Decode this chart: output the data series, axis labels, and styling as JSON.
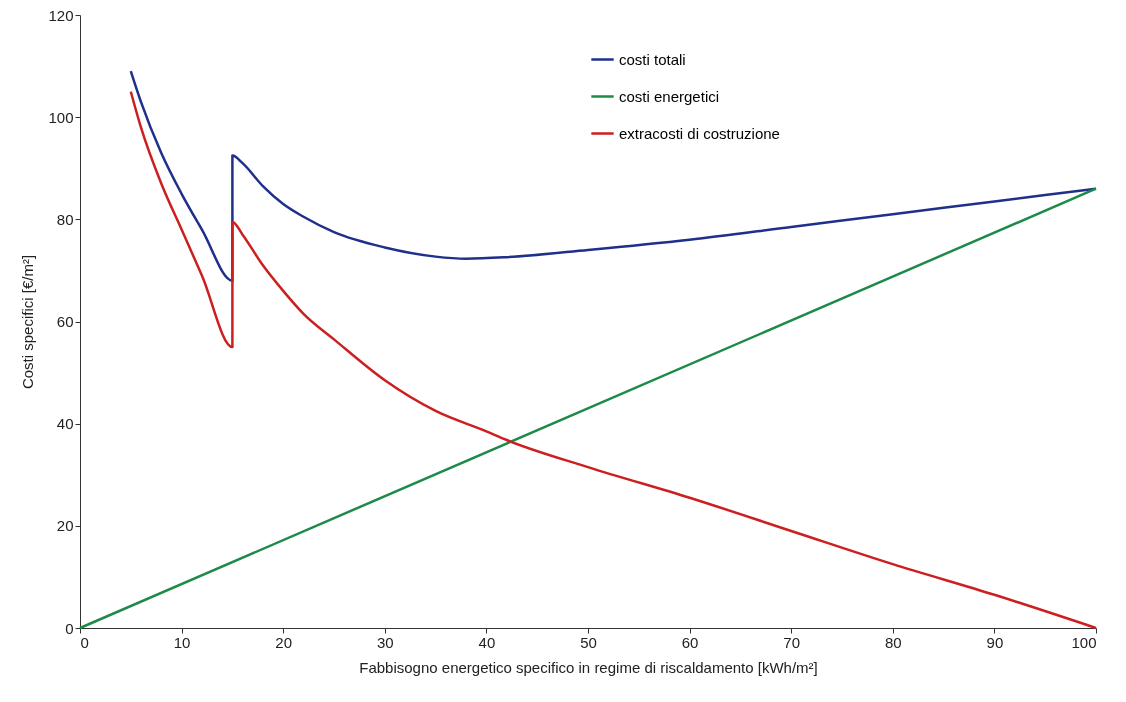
{
  "chart_data": {
    "type": "line",
    "xlabel": "Fabbisogno energetico specifico in regime di riscaldamento [kWh/m²]",
    "ylabel": "Costi specifici [€/m²]",
    "xlim": [
      0,
      100
    ],
    "ylim": [
      0,
      120
    ],
    "xticks": [
      0,
      10,
      20,
      30,
      40,
      50,
      60,
      70,
      80,
      90,
      100
    ],
    "yticks": [
      0,
      20,
      40,
      60,
      80,
      100,
      120
    ],
    "grid": false,
    "legend": "top right",
    "marker": "none",
    "line_style": "solid",
    "series": [
      {
        "name": "costi totali",
        "color": "#1f2f8a",
        "x": [
          5,
          6,
          8,
          10,
          12,
          15,
          15,
          16,
          18,
          20,
          22,
          25,
          30,
          35,
          38,
          42,
          50,
          60,
          70,
          80,
          90,
          100
        ],
        "values": [
          109,
          103,
          93,
          85,
          78,
          68,
          92.5,
          91,
          86.5,
          83,
          80.5,
          77.5,
          74.5,
          72.7,
          72.3,
          72.6,
          74,
          76,
          78.5,
          81,
          83.5,
          86
        ]
      },
      {
        "name": "costi energetici",
        "color": "#1e8a4a",
        "x": [
          0,
          100
        ],
        "values": [
          0,
          86
        ]
      },
      {
        "name": "extracosti di costruzione",
        "color": "#cc1f1f",
        "x": [
          5,
          6,
          8,
          10,
          12,
          15,
          15,
          16,
          18,
          20,
          22,
          25,
          30,
          35,
          40,
          42,
          50,
          60,
          70,
          80,
          90,
          100
        ],
        "values": [
          105,
          98,
          87,
          78,
          69,
          55,
          79.5,
          77,
          71,
          66,
          61.5,
          56.5,
          48.5,
          42.5,
          38.5,
          36.8,
          31.5,
          25.5,
          19,
          12.5,
          6.5,
          0
        ]
      }
    ]
  }
}
